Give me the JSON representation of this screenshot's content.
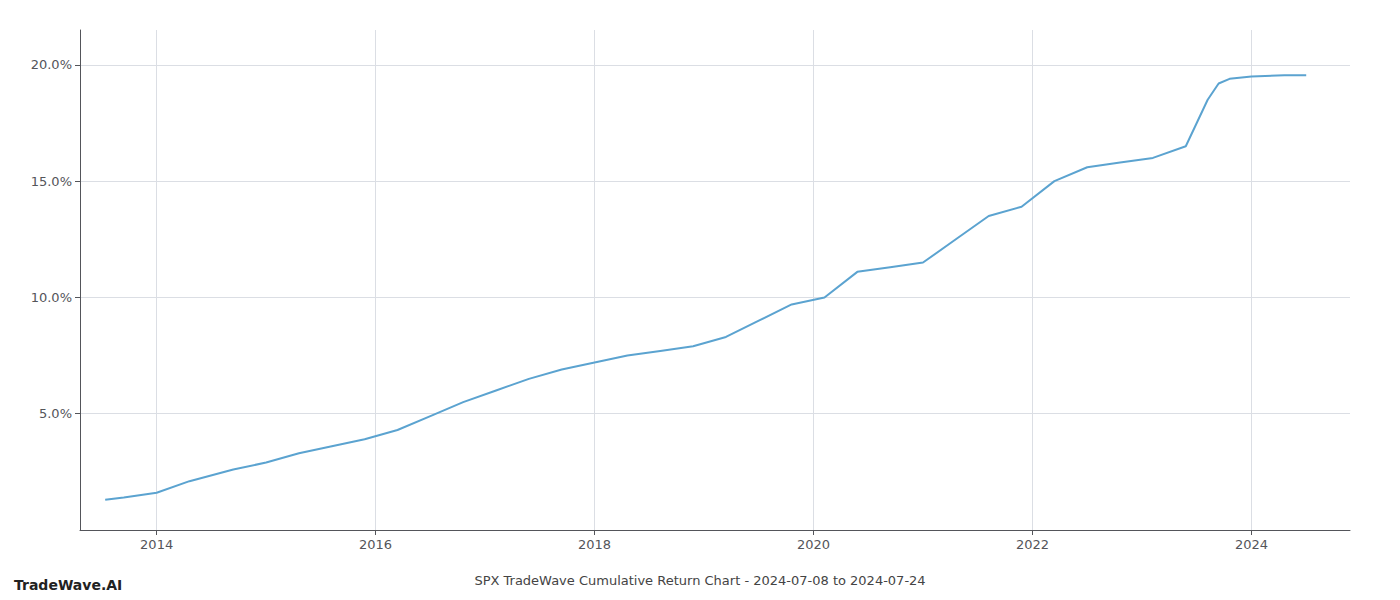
{
  "chart_data": {
    "type": "line",
    "title": "SPX TradeWave Cumulative Return Chart - 2024-07-08 to 2024-07-24",
    "annotations": [
      "TradeWave.AI"
    ],
    "color": "#5ba3d0",
    "x": [
      2013.53,
      2013.7,
      2014.0,
      2014.3,
      2014.7,
      2015.0,
      2015.3,
      2015.6,
      2015.9,
      2016.2,
      2016.5,
      2016.8,
      2017.1,
      2017.4,
      2017.7,
      2018.0,
      2018.3,
      2018.6,
      2018.9,
      2019.2,
      2019.5,
      2019.8,
      2020.1,
      2020.4,
      2020.7,
      2021.0,
      2021.3,
      2021.6,
      2021.9,
      2022.2,
      2022.5,
      2022.8,
      2023.1,
      2023.4,
      2023.5,
      2023.6,
      2023.7,
      2023.8,
      2024.0,
      2024.3,
      2024.5
    ],
    "values": [
      1.3,
      1.4,
      1.6,
      2.1,
      2.6,
      2.9,
      3.3,
      3.6,
      3.9,
      4.3,
      4.9,
      5.5,
      6.0,
      6.5,
      6.9,
      7.2,
      7.5,
      7.7,
      7.9,
      8.3,
      9.0,
      9.7,
      10.0,
      11.1,
      11.3,
      11.5,
      12.5,
      13.5,
      13.9,
      15.0,
      15.6,
      15.8,
      16.0,
      16.5,
      17.5,
      18.5,
      19.2,
      19.4,
      19.5,
      19.55,
      19.55
    ],
    "xlim": [
      2013.3,
      2024.9
    ],
    "xticks": [
      2014,
      2016,
      2018,
      2020,
      2022,
      2024
    ],
    "ylim": [
      0,
      21.5
    ],
    "yticks": [
      {
        "value": 5.0,
        "label": "5.0%"
      },
      {
        "value": 10.0,
        "label": "10.0%"
      },
      {
        "value": 15.0,
        "label": "15.0%"
      },
      {
        "value": 20.0,
        "label": "20.0%"
      }
    ],
    "grid": true
  }
}
